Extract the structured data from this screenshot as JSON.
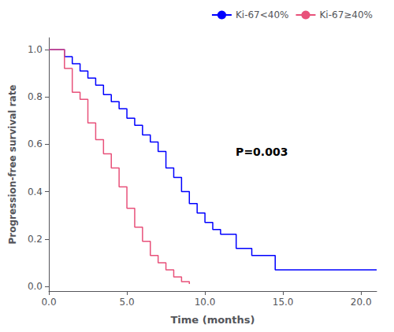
{
  "chart_data": {
    "type": "step",
    "xlabel": "Time (months)",
    "ylabel": "Progression-free survival rate",
    "xlim": [
      0,
      21
    ],
    "ylim": [
      -0.02,
      1.05
    ],
    "xticks": [
      {
        "value": 0,
        "label": "0.0"
      },
      {
        "value": 5,
        "label": "5.0"
      },
      {
        "value": 10,
        "label": "10.0"
      },
      {
        "value": 15,
        "label": "15.0"
      },
      {
        "value": 20,
        "label": "20.0"
      }
    ],
    "yticks": [
      {
        "value": 0,
        "label": "0.0"
      },
      0.2,
      0.4,
      0.6,
      0.8,
      {
        "value": 1,
        "label": "1.0"
      }
    ],
    "legend": "upper right",
    "annotations": [
      {
        "text": "P=0.003"
      }
    ],
    "series": [
      {
        "name": "Ki-67<40%",
        "color": "#0000FF",
        "x": [
          0,
          0.5,
          1.0,
          1.5,
          2.0,
          2.5,
          3.0,
          3.5,
          4.0,
          4.5,
          5.0,
          5.5,
          6.0,
          6.5,
          7.0,
          7.5,
          8.0,
          8.5,
          9.0,
          9.5,
          10.0,
          10.5,
          11.0,
          12.0,
          13.0,
          14.5,
          21.0
        ],
        "values": [
          1.0,
          1.0,
          0.97,
          0.94,
          0.91,
          0.88,
          0.85,
          0.81,
          0.78,
          0.75,
          0.71,
          0.68,
          0.64,
          0.61,
          0.57,
          0.5,
          0.46,
          0.4,
          0.35,
          0.31,
          0.27,
          0.24,
          0.22,
          0.16,
          0.13,
          0.07,
          0.07
        ]
      },
      {
        "name": "Ki-67≥40%",
        "color": "#E8517A",
        "x": [
          0,
          0.5,
          1.0,
          1.5,
          2.0,
          2.5,
          3.0,
          3.5,
          4.0,
          4.5,
          5.0,
          5.5,
          6.0,
          6.5,
          7.0,
          7.5,
          8.0,
          8.5,
          9.0
        ],
        "values": [
          1.0,
          1.0,
          0.92,
          0.82,
          0.79,
          0.69,
          0.62,
          0.56,
          0.5,
          0.42,
          0.33,
          0.25,
          0.19,
          0.13,
          0.1,
          0.07,
          0.04,
          0.02,
          0.01
        ]
      }
    ]
  }
}
